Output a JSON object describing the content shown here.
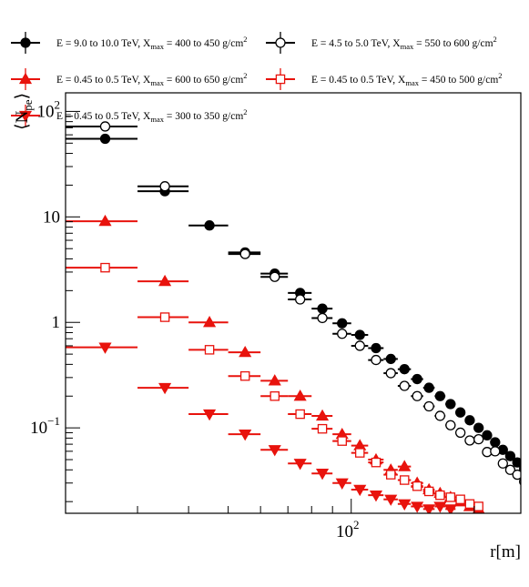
{
  "chart_data": {
    "type": "scatter",
    "xscale": "log",
    "yscale": "log",
    "xlim": [
      20,
      260
    ],
    "ylim": [
      0.0155,
      150
    ],
    "grid": false,
    "legend_position": "top",
    "xlabel": "r[m]",
    "ylabel_main": "⟨N",
    "ylabel_sub": "pe",
    "ylabel_close": "⟩",
    "x_ticks": [
      {
        "value": 100,
        "label": "10",
        "exp": "2"
      }
    ],
    "y_ticks": [
      {
        "value": 0.1,
        "label": "10",
        "exp": "−1"
      },
      {
        "value": 1,
        "label": "1",
        "exp": ""
      },
      {
        "value": 10,
        "label": "10",
        "exp": ""
      },
      {
        "value": 100,
        "label": "10",
        "exp": "2"
      }
    ],
    "series": [
      {
        "name": "E = 9.0 to 10.0 TeV, X_max = 400 to 450 g/cm^2",
        "legend": {
          "pre": "E = 9.0 to 10.0 TeV, X",
          "sub": "max",
          "mid": " = 400 to 450 g/cm",
          "sup": "2"
        },
        "color": "#000000",
        "marker": "circle",
        "filled": true,
        "points": [
          [
            25,
            55,
            20,
            30
          ],
          [
            35,
            17.5,
            30,
            40
          ],
          [
            45,
            8.3,
            40,
            50
          ],
          [
            55,
            4.6,
            50,
            60
          ],
          [
            65,
            2.9,
            60,
            70
          ],
          [
            75,
            1.9,
            70,
            80
          ],
          [
            85,
            1.35,
            80,
            90
          ],
          [
            95,
            0.98,
            90,
            100
          ],
          [
            105,
            0.76,
            100,
            110
          ],
          [
            115,
            0.57,
            110,
            120
          ],
          [
            125,
            0.45,
            120,
            130
          ],
          [
            135,
            0.36,
            130,
            140
          ],
          [
            145,
            0.29,
            140,
            150
          ],
          [
            155,
            0.24,
            150,
            160
          ],
          [
            165,
            0.2,
            160,
            170
          ],
          [
            175,
            0.168,
            170,
            180
          ],
          [
            185,
            0.14,
            180,
            190
          ],
          [
            195,
            0.118,
            190,
            200
          ],
          [
            205,
            0.1,
            200,
            210
          ],
          [
            215,
            0.085,
            210,
            220
          ],
          [
            225,
            0.073,
            220,
            230
          ],
          [
            235,
            0.062,
            230,
            240
          ],
          [
            245,
            0.054,
            240,
            250
          ],
          [
            255,
            0.047,
            250,
            260
          ],
          [
            265,
            0.041,
            260,
            270
          ],
          [
            275,
            0.036,
            270,
            280
          ],
          [
            285,
            0.032,
            280,
            290
          ],
          [
            295,
            0.028,
            290,
            300
          ]
        ]
      },
      {
        "name": "E = 4.5 to 5.0 TeV, X_max = 550 to 600 g/cm^2",
        "legend": {
          "pre": "E = 4.5 to 5.0 TeV, X",
          "sub": "max",
          "mid": " = 550 to 600 g/cm",
          "sup": "2"
        },
        "color": "#000000",
        "marker": "circle",
        "filled": false,
        "points": [
          [
            25,
            72,
            20,
            30
          ],
          [
            35,
            19.5,
            30,
            40
          ],
          [
            55,
            4.45,
            50,
            60
          ],
          [
            65,
            2.7,
            60,
            70
          ],
          [
            75,
            1.65,
            70,
            80
          ],
          [
            85,
            1.1,
            80,
            90
          ],
          [
            95,
            0.78,
            90,
            100
          ],
          [
            105,
            0.6,
            100,
            110
          ],
          [
            115,
            0.44,
            110,
            120
          ],
          [
            125,
            0.33,
            120,
            130
          ],
          [
            135,
            0.25,
            130,
            140
          ],
          [
            145,
            0.2,
            140,
            150
          ],
          [
            155,
            0.16,
            150,
            160
          ],
          [
            165,
            0.13,
            160,
            170
          ],
          [
            175,
            0.106,
            170,
            180
          ],
          [
            185,
            0.09,
            180,
            190
          ],
          [
            195,
            0.076,
            190,
            200
          ],
          [
            205,
            0.078,
            200,
            210
          ],
          [
            215,
            0.059,
            210,
            220
          ],
          [
            225,
            0.06,
            220,
            230
          ],
          [
            235,
            0.046,
            230,
            240
          ],
          [
            245,
            0.04,
            240,
            250
          ],
          [
            255,
            0.036,
            250,
            260
          ],
          [
            265,
            0.031,
            260,
            270
          ],
          [
            275,
            0.027,
            270,
            280
          ],
          [
            285,
            0.023,
            280,
            290
          ],
          [
            295,
            0.021,
            290,
            300
          ]
        ]
      },
      {
        "name": "E = 0.45 to 0.5 TeV, X_max = 600 to 650 g/cm^2",
        "legend": {
          "pre": "E = 0.45 to 0.5 TeV, X",
          "sub": "max",
          "mid": " = 600 to 650 g/cm",
          "sup": "2"
        },
        "color": "#e8130d",
        "marker": "triangle-up",
        "filled": true,
        "points": [
          [
            25,
            9.1,
            20,
            30
          ],
          [
            35,
            2.45,
            30,
            40
          ],
          [
            45,
            1.0,
            40,
            50
          ],
          [
            55,
            0.52,
            50,
            60
          ],
          [
            65,
            0.28,
            60,
            70
          ],
          [
            75,
            0.2,
            70,
            80
          ],
          [
            85,
            0.13,
            80,
            90
          ],
          [
            95,
            0.087,
            90,
            100
          ],
          [
            105,
            0.068,
            100,
            110
          ],
          [
            115,
            0.05,
            110,
            120
          ],
          [
            125,
            0.04,
            120,
            130
          ],
          [
            135,
            0.043,
            130,
            140
          ],
          [
            145,
            0.03,
            140,
            150
          ],
          [
            155,
            0.026,
            150,
            160
          ],
          [
            165,
            0.024,
            160,
            170
          ],
          [
            175,
            0.022,
            170,
            180
          ],
          [
            185,
            0.02,
            180,
            190
          ],
          [
            195,
            0.018,
            190,
            200
          ],
          [
            205,
            0.017,
            200,
            210
          ]
        ]
      },
      {
        "name": "E = 0.45 to 0.5 TeV, X_max = 450 to 500 g/cm^2",
        "legend": {
          "pre": "E = 0.45 to 0.5 TeV, X",
          "sub": "max",
          "mid": " = 450 to 500 g/cm",
          "sup": "2"
        },
        "color": "#e8130d",
        "marker": "square",
        "filled": false,
        "points": [
          [
            25,
            3.3,
            20,
            30
          ],
          [
            35,
            1.12,
            30,
            40
          ],
          [
            45,
            0.55,
            40,
            50
          ],
          [
            55,
            0.31,
            50,
            60
          ],
          [
            65,
            0.2,
            60,
            70
          ],
          [
            75,
            0.135,
            70,
            80
          ],
          [
            85,
            0.098,
            80,
            90
          ],
          [
            95,
            0.075,
            90,
            100
          ],
          [
            105,
            0.058,
            100,
            110
          ],
          [
            115,
            0.047,
            110,
            120
          ],
          [
            125,
            0.036,
            120,
            130
          ],
          [
            135,
            0.032,
            130,
            140
          ],
          [
            145,
            0.028,
            140,
            150
          ],
          [
            155,
            0.025,
            150,
            160
          ],
          [
            165,
            0.023,
            160,
            170
          ],
          [
            175,
            0.022,
            170,
            180
          ],
          [
            185,
            0.021,
            180,
            190
          ],
          [
            195,
            0.019,
            190,
            200
          ],
          [
            205,
            0.018,
            200,
            210
          ]
        ]
      },
      {
        "name": "E = 0.45 to 0.5 TeV, X_max = 300 to 350 g/cm^2",
        "legend": {
          "pre": "E = 0.45 to 0.5 TeV, X",
          "sub": "max",
          "mid": " = 300 to 350 g/cm",
          "sup": "2"
        },
        "color": "#e8130d",
        "marker": "triangle-down",
        "filled": true,
        "points": [
          [
            25,
            0.58,
            20,
            30
          ],
          [
            35,
            0.24,
            30,
            40
          ],
          [
            45,
            0.135,
            40,
            50
          ],
          [
            55,
            0.087,
            50,
            60
          ],
          [
            65,
            0.062,
            60,
            70
          ],
          [
            75,
            0.046,
            70,
            80
          ],
          [
            85,
            0.037,
            80,
            90
          ],
          [
            95,
            0.03,
            90,
            100
          ],
          [
            105,
            0.026,
            100,
            110
          ],
          [
            115,
            0.023,
            110,
            120
          ],
          [
            125,
            0.021,
            120,
            130
          ],
          [
            135,
            0.019,
            130,
            140
          ],
          [
            145,
            0.018,
            140,
            150
          ],
          [
            155,
            0.017,
            150,
            160
          ],
          [
            165,
            0.018,
            160,
            170
          ],
          [
            175,
            0.017,
            170,
            180
          ]
        ]
      }
    ]
  }
}
